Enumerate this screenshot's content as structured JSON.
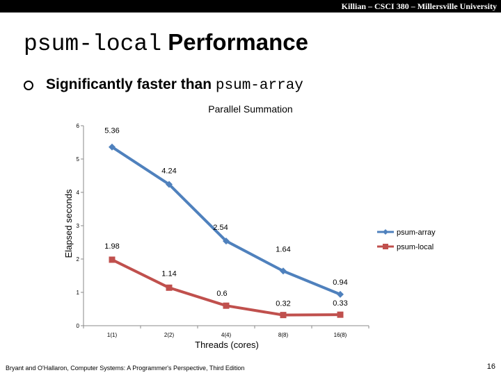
{
  "header": {
    "course": "Killian – CSCI 380 – Millersville University"
  },
  "slide": {
    "title_code": "psum-local",
    "title_text": " Performance",
    "bullet_text": "Significantly faster than ",
    "bullet_code": "psum-array"
  },
  "chart_data": {
    "type": "line",
    "title": "Parallel Summation",
    "xlabel": "Threads (cores)",
    "ylabel": "Elapsed seconds",
    "categories": [
      "1(1)",
      "2(2)",
      "4(4)",
      "8(8)",
      "16(8)"
    ],
    "ylim": [
      0,
      6
    ],
    "yticks": [
      "0",
      "1",
      "2",
      "3",
      "4",
      "5",
      "6"
    ],
    "grid": false,
    "legend_position": "right",
    "series": [
      {
        "name": "psum-array",
        "values": [
          5.36,
          4.24,
          2.54,
          1.64,
          0.94
        ],
        "labels": [
          "5.36",
          "4.24",
          "2.54",
          "1.64",
          "0.94"
        ],
        "color": "#4f81bd",
        "marker": "diamond"
      },
      {
        "name": "psum-local",
        "values": [
          1.98,
          1.14,
          0.6,
          0.32,
          0.33
        ],
        "labels": [
          "1.98",
          "1.14",
          "0.6",
          "0.32",
          "0.33"
        ],
        "color": "#c0504d",
        "marker": "square"
      }
    ]
  },
  "footer": {
    "citation": "Bryant and O'Hallaron, Computer Systems: A Programmer's Perspective, Third Edition",
    "page": "16"
  }
}
